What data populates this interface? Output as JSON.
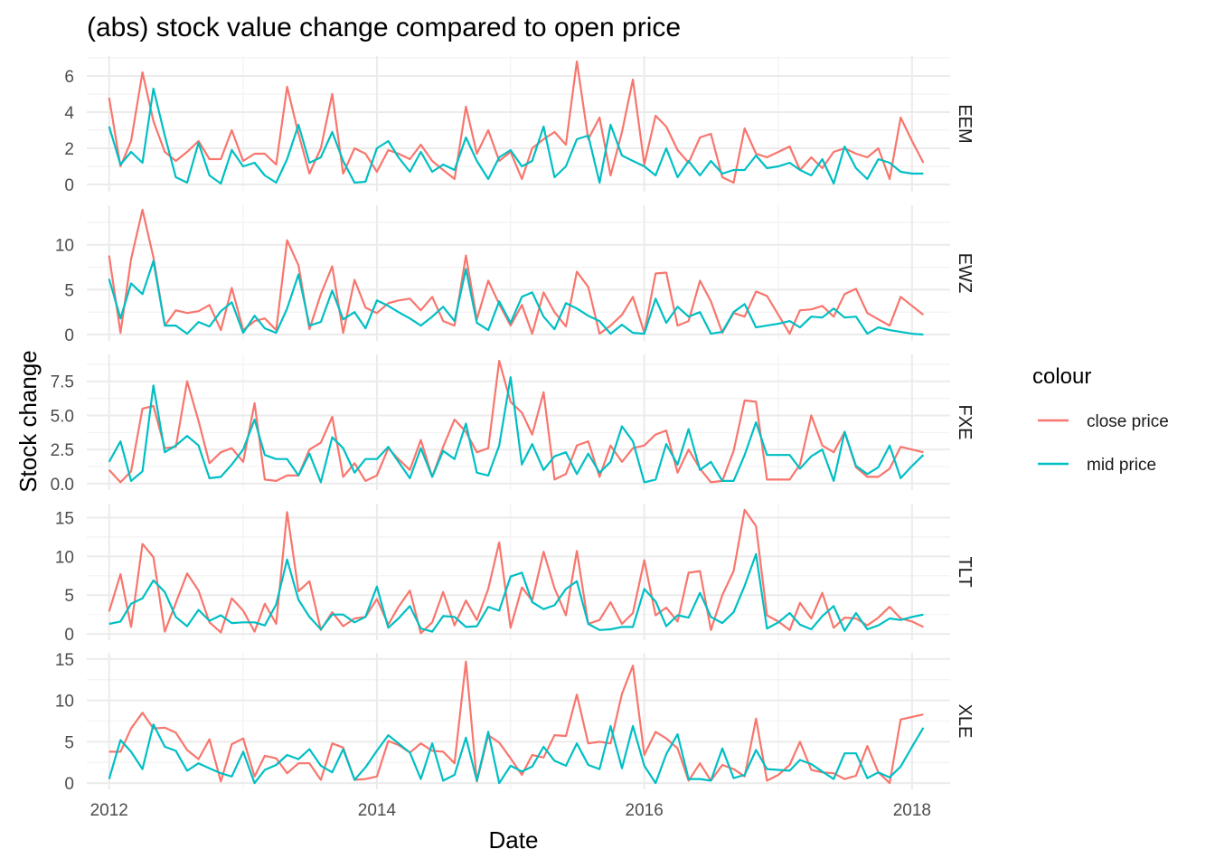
{
  "chart_data": {
    "type": "line",
    "title": "(abs) stock value change compared to open price",
    "xlabel": "Date",
    "ylabel": "Stock change",
    "facet_by": "symbol",
    "facet_direction": "vertical",
    "facet_strip_position": "right",
    "grid": true,
    "legend": {
      "title": "colour",
      "position": "right"
    },
    "x_range": [
      "2011-11-01",
      "2018-04-15"
    ],
    "x_ticks": [
      "2012",
      "2014",
      "2016",
      "2018"
    ],
    "series_styles": [
      {
        "name": "close price",
        "color": "#F8766D"
      },
      {
        "name": "mid price",
        "color": "#00BFC4"
      }
    ],
    "x": [
      "2012-01",
      "2012-02",
      "2012-03",
      "2012-04",
      "2012-05",
      "2012-06",
      "2012-07",
      "2012-08",
      "2012-09",
      "2012-10",
      "2012-11",
      "2012-12",
      "2013-01",
      "2013-02",
      "2013-03",
      "2013-04",
      "2013-05",
      "2013-06",
      "2013-07",
      "2013-08",
      "2013-09",
      "2013-10",
      "2013-11",
      "2013-12",
      "2014-01",
      "2014-02",
      "2014-03",
      "2014-04",
      "2014-05",
      "2014-06",
      "2014-07",
      "2014-08",
      "2014-09",
      "2014-10",
      "2014-11",
      "2014-12",
      "2015-01",
      "2015-02",
      "2015-03",
      "2015-04",
      "2015-05",
      "2015-06",
      "2015-07",
      "2015-08",
      "2015-09",
      "2015-10",
      "2015-11",
      "2015-12",
      "2016-01",
      "2016-02",
      "2016-03",
      "2016-04",
      "2016-05",
      "2016-06",
      "2016-07",
      "2016-08",
      "2016-09",
      "2016-10",
      "2016-11",
      "2016-12",
      "2017-01",
      "2017-02",
      "2017-03",
      "2017-04",
      "2017-05",
      "2017-06",
      "2017-07",
      "2017-08",
      "2017-09",
      "2017-10",
      "2017-11",
      "2017-12",
      "2018-01",
      "2018-02"
    ],
    "panels": [
      {
        "symbol": "EEM",
        "ylim": [
          -0.4,
          7.1
        ],
        "yticks": [
          0,
          2,
          4,
          6
        ],
        "series": [
          {
            "name": "close price",
            "values": [
              4.8,
              1.0,
              2.4,
              6.2,
              3.5,
              1.8,
              1.3,
              1.8,
              2.4,
              1.4,
              1.4,
              3.0,
              1.3,
              1.7,
              1.7,
              1.1,
              5.4,
              2.8,
              0.6,
              2.0,
              5.0,
              0.6,
              2.0,
              1.7,
              0.7,
              1.9,
              1.7,
              1.4,
              2.2,
              1.3,
              0.8,
              0.3,
              4.3,
              1.7,
              3.0,
              1.3,
              1.8,
              0.3,
              2.0,
              2.5,
              2.9,
              2.2,
              6.8,
              2.5,
              3.7,
              0.5,
              2.9,
              5.8,
              1.1,
              3.8,
              3.2,
              1.9,
              1.2,
              2.6,
              2.8,
              0.4,
              0.1,
              3.1,
              1.7,
              1.5,
              1.8,
              2.1,
              0.8,
              1.5,
              0.9,
              1.8,
              2.0,
              1.7,
              1.5,
              2.0,
              0.3,
              3.7,
              2.4,
              1.2
            ]
          },
          {
            "name": "mid price",
            "values": [
              3.2,
              1.1,
              1.8,
              1.2,
              5.3,
              2.7,
              0.4,
              0.1,
              2.3,
              0.5,
              0.05,
              1.9,
              1.0,
              1.2,
              0.5,
              0.1,
              1.4,
              3.3,
              1.2,
              1.5,
              2.9,
              1.3,
              0.1,
              0.15,
              2.0,
              2.4,
              1.5,
              0.7,
              1.8,
              0.7,
              1.1,
              0.8,
              2.6,
              1.3,
              0.3,
              1.5,
              1.9,
              1.0,
              1.3,
              3.2,
              0.4,
              1.0,
              2.5,
              2.7,
              0.1,
              3.3,
              1.6,
              1.3,
              1.0,
              0.5,
              2.0,
              0.4,
              1.3,
              0.5,
              1.3,
              0.6,
              0.8,
              0.8,
              1.6,
              0.9,
              1.0,
              1.2,
              0.8,
              0.5,
              1.4,
              0.05,
              2.1,
              0.9,
              0.3,
              1.4,
              1.2,
              0.7,
              0.6,
              0.6
            ]
          }
        ]
      },
      {
        "symbol": "EWZ",
        "ylim": [
          -0.7,
          14.4
        ],
        "yticks": [
          0,
          5,
          10
        ],
        "series": [
          {
            "name": "close price",
            "values": [
              8.8,
              0.2,
              8.4,
              13.9,
              8.6,
              1.0,
              2.7,
              2.4,
              2.6,
              3.3,
              0.5,
              5.2,
              0.5,
              1.5,
              1.8,
              0.5,
              10.5,
              7.7,
              0.6,
              4.5,
              7.6,
              0.2,
              6.1,
              3.0,
              2.4,
              3.5,
              3.8,
              4.0,
              2.7,
              4.2,
              1.5,
              1.0,
              8.8,
              1.7,
              6.0,
              3.4,
              1.0,
              3.3,
              0.1,
              4.7,
              2.5,
              0.9,
              7.0,
              5.3,
              0.1,
              1.0,
              2.2,
              4.2,
              0.2,
              6.8,
              6.9,
              1.0,
              1.5,
              6.0,
              3.7,
              0.2,
              2.4,
              2.0,
              4.8,
              4.3,
              2.2,
              0.1,
              2.7,
              2.8,
              3.2,
              2.0,
              4.5,
              5.1,
              2.4,
              1.7,
              1.0,
              4.2,
              3.2,
              2.2
            ]
          },
          {
            "name": "mid price",
            "values": [
              6.2,
              1.8,
              5.7,
              4.5,
              8.2,
              1.0,
              1.0,
              0.1,
              1.4,
              0.9,
              2.6,
              3.6,
              0.2,
              2.1,
              0.7,
              0.2,
              2.9,
              6.7,
              1.0,
              1.4,
              4.9,
              1.7,
              2.5,
              0.7,
              3.8,
              3.2,
              2.5,
              1.8,
              1.0,
              2.0,
              3.1,
              1.5,
              7.3,
              1.3,
              0.5,
              3.7,
              1.3,
              4.2,
              4.7,
              2.0,
              0.6,
              3.5,
              2.9,
              2.1,
              1.5,
              0.1,
              1.1,
              0.2,
              0.1,
              4.0,
              1.3,
              3.1,
              2.0,
              2.5,
              0.1,
              0.3,
              2.5,
              3.4,
              0.8,
              1.0,
              1.2,
              1.5,
              0.8,
              2.0,
              1.9,
              2.9,
              1.9,
              2.0,
              0.1,
              0.8,
              0.5,
              0.3,
              0.1,
              0.0
            ]
          }
        ]
      },
      {
        "symbol": "FXE",
        "ylim": [
          -0.47,
          9.47
        ],
        "yticks": [
          0.0,
          2.5,
          5.0,
          7.5
        ],
        "series": [
          {
            "name": "close price",
            "values": [
              1.0,
              0.1,
              0.9,
              5.5,
              5.7,
              2.6,
              2.7,
              7.5,
              4.6,
              1.5,
              2.3,
              2.6,
              1.6,
              5.9,
              0.3,
              0.2,
              0.6,
              0.6,
              2.5,
              3.0,
              4.9,
              0.5,
              1.5,
              0.2,
              0.6,
              2.6,
              1.8,
              1.0,
              3.2,
              0.5,
              2.7,
              4.7,
              3.8,
              2.3,
              2.6,
              9.0,
              6.0,
              5.2,
              3.6,
              6.7,
              0.3,
              0.7,
              2.8,
              3.1,
              0.5,
              2.8,
              1.6,
              2.6,
              2.8,
              3.6,
              3.9,
              0.8,
              2.5,
              1.1,
              0.1,
              0.2,
              2.4,
              6.1,
              6.0,
              0.3,
              0.3,
              0.3,
              1.4,
              5.0,
              2.8,
              2.3,
              3.8,
              1.2,
              0.5,
              0.5,
              1.1,
              2.7,
              2.5,
              2.3
            ]
          },
          {
            "name": "mid price",
            "values": [
              1.6,
              3.1,
              0.2,
              0.9,
              7.2,
              2.3,
              2.8,
              3.5,
              2.8,
              0.4,
              0.5,
              1.4,
              2.5,
              4.7,
              2.1,
              1.8,
              1.8,
              0.6,
              2.2,
              0.1,
              3.4,
              2.6,
              0.8,
              1.8,
              1.8,
              2.7,
              1.6,
              0.4,
              2.6,
              0.5,
              2.4,
              1.8,
              4.4,
              0.8,
              0.6,
              2.8,
              7.8,
              1.4,
              2.9,
              1.0,
              2.0,
              2.3,
              0.7,
              2.2,
              0.8,
              1.6,
              4.2,
              3.1,
              0.1,
              0.3,
              2.9,
              1.4,
              4.0,
              1.0,
              1.6,
              0.2,
              0.2,
              2.1,
              4.5,
              2.1,
              2.1,
              2.1,
              1.1,
              2.0,
              2.5,
              0.2,
              3.8,
              1.3,
              0.7,
              1.2,
              2.8,
              0.4,
              1.3,
              2.1
            ]
          }
        ]
      },
      {
        "symbol": "TLT",
        "ylim": [
          -0.8,
          16.8
        ],
        "yticks": [
          0,
          5,
          10,
          15
        ],
        "series": [
          {
            "name": "close price",
            "values": [
              2.9,
              7.7,
              0.9,
              11.6,
              9.9,
              0.3,
              4.0,
              7.8,
              5.6,
              1.5,
              0.2,
              4.6,
              3.0,
              0.3,
              3.9,
              1.3,
              15.7,
              5.5,
              6.8,
              0.5,
              2.8,
              1.0,
              2.0,
              2.2,
              4.5,
              1.2,
              3.5,
              5.6,
              0.1,
              1.5,
              5.4,
              1.1,
              4.3,
              1.8,
              5.8,
              11.8,
              0.8,
              6.0,
              4.3,
              10.6,
              5.9,
              2.4,
              10.7,
              1.3,
              1.8,
              4.1,
              1.3,
              2.7,
              9.5,
              2.4,
              3.4,
              1.6,
              7.9,
              8.1,
              0.5,
              5.0,
              8.1,
              16.0,
              13.9,
              2.4,
              1.6,
              0.5,
              4.0,
              2.0,
              5.3,
              0.8,
              2.1,
              2.0,
              1.1,
              2.1,
              3.5,
              2.0,
              1.6,
              0.9
            ]
          },
          {
            "name": "mid price",
            "values": [
              1.3,
              1.6,
              3.9,
              4.6,
              6.9,
              5.4,
              2.2,
              1.0,
              3.1,
              1.7,
              2.4,
              1.4,
              1.5,
              1.5,
              1.1,
              3.8,
              9.6,
              4.4,
              2.2,
              0.6,
              2.5,
              2.5,
              1.5,
              2.2,
              6.1,
              0.8,
              2.0,
              3.6,
              0.7,
              0.3,
              2.3,
              2.2,
              0.9,
              1.0,
              3.5,
              3.0,
              7.4,
              7.9,
              4.1,
              3.2,
              3.7,
              5.8,
              6.8,
              1.3,
              0.5,
              0.6,
              0.9,
              0.9,
              5.8,
              4.2,
              1.0,
              2.4,
              2.1,
              5.3,
              2.2,
              1.4,
              2.8,
              6.2,
              10.3,
              0.7,
              1.5,
              2.7,
              1.2,
              0.6,
              2.3,
              3.6,
              0.4,
              2.7,
              0.6,
              1.1,
              2.0,
              1.8,
              2.2,
              2.5
            ]
          }
        ]
      },
      {
        "symbol": "XLE",
        "ylim": [
          -0.75,
          15.75
        ],
        "yticks": [
          0,
          5,
          10,
          15
        ],
        "series": [
          {
            "name": "close price",
            "values": [
              3.8,
              3.8,
              6.6,
              8.5,
              6.6,
              6.7,
              6.1,
              4.0,
              2.9,
              5.3,
              0.2,
              4.7,
              5.4,
              0.8,
              3.3,
              3.0,
              1.2,
              2.4,
              2.4,
              0.4,
              4.8,
              4.3,
              0.4,
              0.5,
              0.8,
              5.1,
              4.6,
              3.7,
              4.8,
              3.9,
              3.8,
              2.4,
              14.7,
              0.2,
              5.8,
              4.9,
              3.0,
              1.0,
              3.4,
              3.1,
              5.8,
              5.7,
              10.7,
              4.8,
              5.0,
              4.8,
              10.8,
              14.2,
              3.4,
              6.2,
              5.4,
              4.2,
              0.3,
              2.4,
              0.3,
              2.2,
              1.7,
              0.8,
              7.8,
              0.3,
              1.0,
              2.2,
              5.0,
              1.6,
              1.3,
              1.2,
              0.5,
              0.9,
              4.5,
              1.3,
              0.0,
              7.7,
              8.0,
              8.3
            ]
          },
          {
            "name": "mid price",
            "values": [
              0.5,
              5.2,
              3.8,
              1.7,
              7.1,
              4.4,
              3.9,
              1.5,
              2.4,
              1.8,
              1.2,
              0.8,
              3.8,
              0.0,
              1.6,
              2.2,
              3.4,
              2.9,
              4.1,
              2.1,
              1.3,
              4.1,
              0.4,
              1.9,
              3.9,
              5.8,
              4.8,
              3.7,
              0.5,
              4.8,
              0.3,
              1.0,
              5.5,
              0.3,
              6.2,
              0.0,
              2.1,
              1.4,
              2.0,
              4.4,
              2.7,
              2.1,
              4.8,
              2.2,
              1.7,
              6.9,
              1.8,
              6.9,
              2.1,
              0.0,
              3.5,
              5.9,
              0.5,
              0.5,
              0.3,
              4.2,
              0.6,
              1.0,
              4.0,
              1.7,
              1.6,
              1.5,
              2.8,
              2.3,
              1.4,
              0.5,
              3.6,
              3.6,
              0.6,
              1.3,
              0.7,
              2.0,
              4.4,
              6.7
            ]
          }
        ]
      }
    ]
  }
}
